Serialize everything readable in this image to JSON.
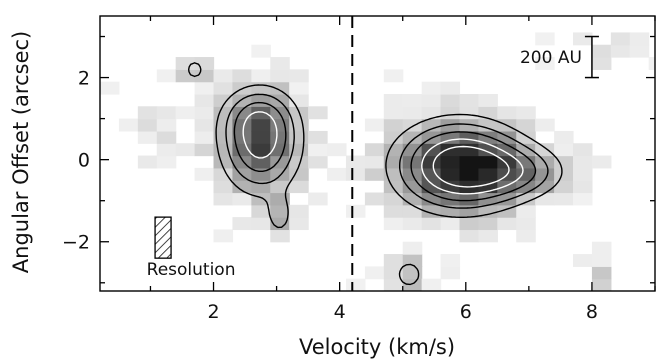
{
  "chart_data": {
    "type": "heatmap",
    "title": "",
    "xlabel": "Velocity (km/s)",
    "ylabel": "Angular Offset (arcsec)",
    "xlim": [
      0.2,
      9.0
    ],
    "ylim": [
      -3.2,
      3.5
    ],
    "xticks": [
      2,
      4,
      6,
      8
    ],
    "yticks": [
      -2,
      0,
      2
    ],
    "ytick_labels": [
      "−2",
      "0",
      "2"
    ],
    "grid": false,
    "colormap": "grayscale (darker = higher intensity)",
    "reference_line": {
      "x": 4.2,
      "style": "dashed"
    },
    "scale_bar": {
      "label": "200 AU",
      "x": 8.0,
      "y_range": [
        2.0,
        3.0
      ]
    },
    "resolution_marker": {
      "label": "Resolution",
      "x": 1.2,
      "y_range": [
        -2.4,
        -1.4
      ],
      "fill": "hatched"
    },
    "emission_peaks": [
      {
        "velocity": 2.7,
        "offset": 0.3,
        "relative_peak": 0.72
      },
      {
        "velocity": 5.8,
        "offset": -0.2,
        "relative_peak": 1.0
      }
    ],
    "contour_levels": [
      0.25,
      0.4,
      0.55,
      0.7,
      0.85
    ]
  }
}
